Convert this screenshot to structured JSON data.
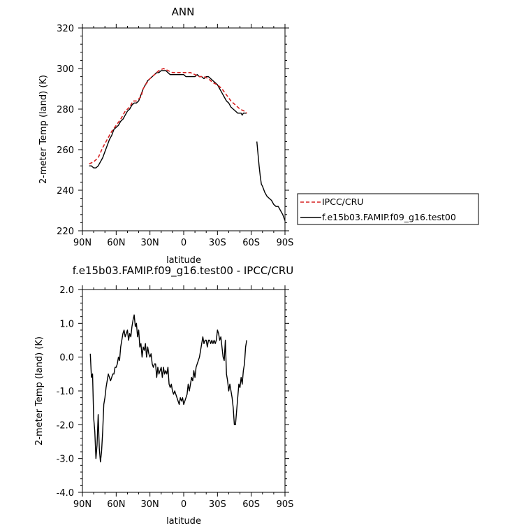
{
  "chart_data": [
    {
      "type": "line",
      "title": "ANN",
      "xlabel": "latitude",
      "ylabel": "2-meter Temp (land) (K)",
      "xlim": [
        90,
        -90
      ],
      "ylim": [
        220,
        320
      ],
      "x_ticks": [
        90,
        60,
        30,
        0,
        -30,
        -60,
        -90
      ],
      "x_tick_labels": [
        "90N",
        "60N",
        "30N",
        "0",
        "30S",
        "60S",
        "90S"
      ],
      "y_ticks": [
        220,
        240,
        260,
        280,
        300,
        320
      ],
      "y_tick_labels": [
        "220",
        "240",
        "260",
        "280",
        "300",
        "320"
      ],
      "legend_placement": "right",
      "series": [
        {
          "name": "IPCC/CRU",
          "color": "#d62020",
          "dash": true,
          "x": [
            84,
            80,
            76,
            72,
            68,
            64,
            60,
            56,
            52,
            48,
            45,
            42,
            38,
            36,
            34,
            30,
            26,
            22,
            18,
            14,
            10,
            6,
            2,
            -2,
            -6,
            -10,
            -14,
            -18,
            -22,
            -26,
            -30,
            -34,
            -38,
            -42,
            -46,
            -50,
            -54,
            -56
          ],
          "y": [
            253,
            254,
            256,
            261,
            265,
            269,
            272,
            275,
            279,
            281,
            284,
            284,
            286,
            290,
            292,
            295,
            297,
            299,
            300,
            299,
            298,
            298,
            298,
            298,
            298,
            297,
            296,
            296,
            295,
            293,
            292,
            290,
            287,
            284,
            282,
            280,
            279,
            278
          ]
        },
        {
          "name": "f.e15b03.FAMIP.f09_g16.test00",
          "color": "#000000",
          "dash": false,
          "x": [
            84,
            82,
            80,
            78,
            76,
            74,
            72,
            70,
            68,
            66,
            64,
            62,
            60,
            58,
            56,
            54,
            52,
            50,
            48,
            46,
            44,
            42,
            40,
            38,
            36,
            34,
            32,
            30,
            28,
            26,
            24,
            22,
            20,
            18,
            16,
            14,
            12,
            10,
            8,
            6,
            4,
            2,
            0,
            -2,
            -4,
            -6,
            -8,
            -10,
            -12,
            -14,
            -16,
            -18,
            -20,
            -22,
            -24,
            -26,
            -28,
            -30,
            -32,
            -34,
            -36,
            -38,
            -40,
            -42,
            -44,
            -46,
            -48,
            -50,
            -51,
            -52,
            -53,
            -54,
            -55,
            -56
          ],
          "y": [
            252,
            252,
            251,
            251,
            252,
            254,
            256,
            259,
            262,
            265,
            267,
            270,
            271,
            272,
            274,
            275,
            277,
            279,
            280,
            282,
            283,
            283,
            284,
            287,
            290,
            292,
            294,
            295,
            296,
            297,
            298,
            298,
            299,
            299,
            299,
            298,
            297,
            297,
            297,
            297,
            297,
            297,
            297,
            296,
            296,
            296,
            296,
            296,
            297,
            296,
            296,
            295,
            296,
            296,
            295,
            294,
            293,
            292,
            290,
            288,
            286,
            284,
            283,
            281,
            280,
            279,
            278,
            278,
            278,
            277,
            278,
            278,
            278,
            278
          ]
        },
        {
          "name": "",
          "color": "#000000",
          "dash": false,
          "x": [
            -65,
            -66,
            -67,
            -68,
            -69,
            -70,
            -72,
            -74,
            -76,
            -78,
            -80,
            -82,
            -84,
            -86,
            -88,
            -90
          ],
          "y": [
            264,
            258,
            252,
            247,
            243,
            242,
            239,
            237,
            236,
            235,
            233,
            232,
            232,
            230,
            228,
            225
          ]
        }
      ]
    },
    {
      "type": "line",
      "title": "f.e15b03.FAMIP.f09_g16.test00 - IPCC/CRU",
      "xlabel": "latitude",
      "ylabel": "2-meter Temp (land) (K)",
      "xlim": [
        90,
        -90
      ],
      "ylim": [
        -4,
        2
      ],
      "x_ticks": [
        90,
        60,
        30,
        0,
        -30,
        -60,
        -90
      ],
      "x_tick_labels": [
        "90N",
        "60N",
        "30N",
        "0",
        "30S",
        "60S",
        "90S"
      ],
      "y_ticks": [
        -4,
        -3,
        -2,
        -1,
        0,
        1,
        2
      ],
      "y_tick_labels": [
        "-4.0",
        "-3.0",
        "-2.0",
        "-1.0",
        "0.0",
        "1.0",
        "2.0"
      ],
      "series": [
        {
          "name": "",
          "color": "#000000",
          "dash": false,
          "x": [
            83,
            82,
            81,
            80,
            79,
            78,
            77,
            76,
            75,
            74,
            73,
            72,
            71,
            70,
            69,
            68,
            67,
            66,
            65,
            64,
            63,
            62,
            61,
            60,
            59,
            58,
            57,
            56,
            55,
            54,
            53,
            52,
            51,
            50,
            49,
            48,
            47,
            46,
            45,
            44,
            43,
            42,
            41,
            40,
            39,
            38,
            37,
            36,
            35,
            34,
            33,
            32,
            31,
            30,
            29,
            28,
            27,
            26,
            25,
            24,
            23,
            22,
            21,
            20,
            19,
            18,
            17,
            16,
            15,
            14,
            13,
            12,
            11,
            10,
            9,
            8,
            7,
            6,
            5,
            4,
            3,
            2,
            1,
            0,
            -1,
            -2,
            -3,
            -4,
            -5,
            -6,
            -7,
            -8,
            -9,
            -10,
            -11,
            -12,
            -13,
            -14,
            -15,
            -16,
            -17,
            -18,
            -19,
            -20,
            -21,
            -22,
            -23,
            -24,
            -25,
            -26,
            -27,
            -28,
            -29,
            -30,
            -31,
            -32,
            -33,
            -34,
            -35,
            -36,
            -37,
            -38,
            -39,
            -40,
            -41,
            -42,
            -43,
            -44,
            -45,
            -46,
            -47,
            -48,
            -49,
            -50,
            -51,
            -52,
            -53,
            -54,
            -55,
            -56
          ],
          "y": [
            0.1,
            -0.6,
            -0.5,
            -1.8,
            -2.2,
            -3.0,
            -2.6,
            -1.7,
            -2.7,
            -3.1,
            -2.8,
            -2.2,
            -1.4,
            -1.2,
            -0.9,
            -0.7,
            -0.5,
            -0.6,
            -0.7,
            -0.6,
            -0.5,
            -0.5,
            -0.3,
            -0.3,
            -0.2,
            0.0,
            -0.1,
            0.3,
            0.5,
            0.7,
            0.8,
            0.6,
            0.7,
            0.8,
            0.5,
            0.7,
            0.6,
            0.9,
            1.1,
            1.25,
            0.9,
            1.0,
            0.6,
            0.8,
            0.3,
            0.4,
            0.0,
            0.3,
            0.2,
            0.4,
            0.0,
            0.3,
            0.1,
            0.0,
            0.1,
            -0.2,
            -0.3,
            -0.2,
            -0.2,
            -0.6,
            -0.3,
            -0.5,
            -0.4,
            -0.3,
            -0.6,
            -0.3,
            -0.5,
            -0.4,
            -0.5,
            -0.3,
            -0.8,
            -0.9,
            -0.8,
            -1.0,
            -1.1,
            -1.0,
            -1.1,
            -1.2,
            -1.3,
            -1.4,
            -1.2,
            -1.3,
            -1.2,
            -1.4,
            -1.3,
            -1.2,
            -1.1,
            -0.8,
            -1.0,
            -0.8,
            -0.6,
            -0.7,
            -0.4,
            -0.6,
            -0.3,
            -0.2,
            -0.1,
            0.0,
            0.2,
            0.4,
            0.6,
            0.4,
            0.5,
            0.5,
            0.3,
            0.5,
            0.5,
            0.4,
            0.5,
            0.4,
            0.5,
            0.4,
            0.5,
            0.8,
            0.7,
            0.5,
            0.6,
            0.3,
            0.0,
            -0.1,
            0.5,
            -0.5,
            -0.7,
            -1.0,
            -0.8,
            -1.0,
            -1.2,
            -1.5,
            -2.0,
            -2.0,
            -1.6,
            -1.2,
            -0.8,
            -0.9,
            -0.6,
            -0.8,
            -0.4,
            -0.2,
            0.3,
            0.5
          ]
        }
      ]
    }
  ]
}
